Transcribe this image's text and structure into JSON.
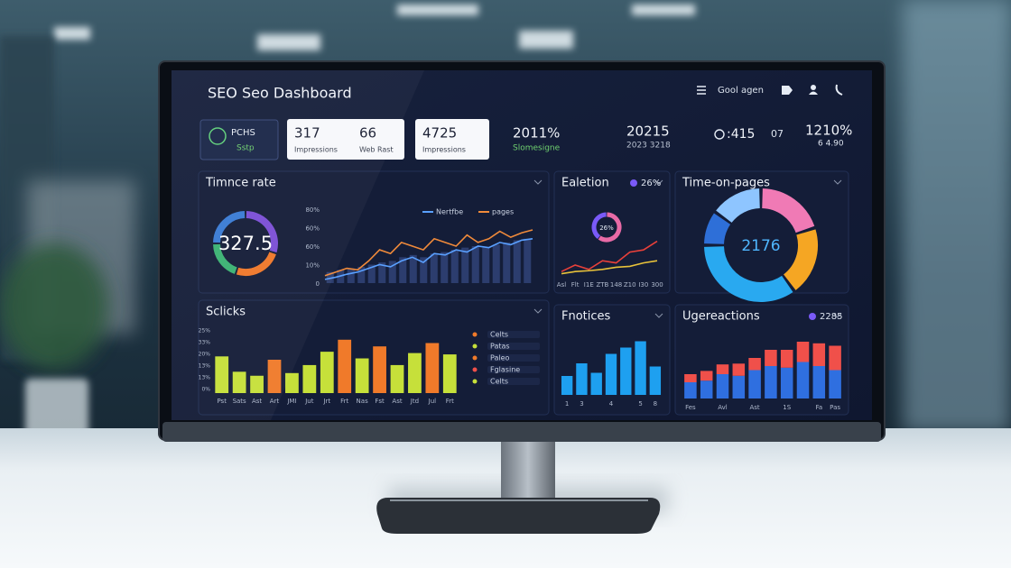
{
  "header": {
    "title": "SEO Seo Dashboard",
    "search": "Gool agen"
  },
  "kpis": [
    {
      "value": "PCHS",
      "label": "Sstp"
    },
    {
      "value": "317",
      "label": "Impressions"
    },
    {
      "value": "66",
      "label": "Web Rast"
    },
    {
      "value": "4725",
      "label": "Impressions"
    },
    {
      "value": "2011%",
      "label": "Slomesigne"
    },
    {
      "value": "20215",
      "label": "2023 3218"
    },
    {
      "value": ":415",
      "label": "07"
    },
    {
      "value": "1210%",
      "label": "6 4.90"
    }
  ],
  "panels": [
    {
      "title": "Timnce rate",
      "gauge": {
        "label": "327.5",
        "segments": [
          {
            "color": "#7b4fd6",
            "value": 30
          },
          {
            "color": "#f0782a",
            "value": 25
          },
          {
            "color": "#3bb273",
            "value": 20
          },
          {
            "color": "#3a7bd5",
            "value": 25
          }
        ]
      },
      "line": {
        "axis_labels": [
          "80%",
          "60%",
          "60%",
          "10%",
          "0"
        ],
        "ylim": [
          0,
          100
        ],
        "bars": {
          "color": "#2c3d6e",
          "values": [
            15,
            18,
            20,
            22,
            25,
            28,
            30,
            35,
            38,
            35,
            40,
            42,
            45,
            48,
            50,
            48,
            52,
            55,
            58,
            60
          ]
        },
        "series": [
          {
            "name": "Nertfbe",
            "color": "#5aa0ff",
            "values": [
              5,
              8,
              12,
              15,
              20,
              25,
              22,
              30,
              35,
              28,
              40,
              38,
              45,
              42,
              50,
              48,
              55,
              52,
              58,
              60
            ]
          },
          {
            "name": "pages",
            "color": "#f08a3a",
            "values": [
              10,
              15,
              20,
              18,
              30,
              45,
              40,
              55,
              50,
              45,
              60,
              55,
              50,
              65,
              55,
              60,
              70,
              62,
              68,
              72
            ]
          }
        ]
      }
    },
    {
      "title": "Ealetion",
      "badge": "26%",
      "donut": {
        "label": "26%",
        "segments": [
          {
            "color": "#e86aa6",
            "value": 60
          },
          {
            "color": "#7a5af8",
            "value": 40
          }
        ]
      },
      "line": {
        "categories": [
          "Asl",
          "Flt",
          "I1E",
          "ZTB",
          "148",
          "Z10",
          "I30",
          "300"
        ],
        "ylim": [
          0,
          100
        ],
        "series": [
          {
            "color": "#e8403a",
            "values": [
              10,
              25,
              15,
              35,
              30,
              55,
              60,
              80
            ]
          },
          {
            "color": "#e8c23a",
            "values": [
              5,
              10,
              12,
              15,
              20,
              22,
              30,
              35
            ]
          }
        ]
      }
    },
    {
      "title": "Time-on-pages",
      "donut": {
        "label": "2176",
        "segments": [
          {
            "color": "#f07ab5",
            "value": 20
          },
          {
            "color": "#f5a623",
            "value": 20
          },
          {
            "color": "#29a9f0",
            "value": 35
          },
          {
            "color": "#2e6fd8",
            "value": 10
          },
          {
            "color": "#8ec5ff",
            "value": 15
          }
        ]
      }
    },
    {
      "title": "Sclicks",
      "bar": {
        "axis_labels": [
          "25%",
          "33%",
          "20%",
          "13%",
          "13%",
          "0%"
        ],
        "ylim": [
          0,
          100
        ],
        "categories": [
          "Pst",
          "Sats",
          "Ast",
          "Art",
          "JMI",
          "Jut",
          "Jrt",
          "Frt",
          "Nas",
          "Fst",
          "Ast",
          "Jtd",
          "Jul",
          "Frt"
        ],
        "colors": [
          "#c6e03a",
          "#c6e03a",
          "#c6e03a",
          "#f07a2a",
          "#c6e03a",
          "#c6e03a",
          "#c6e03a",
          "#f07a2a",
          "#c6e03a",
          "#f07a2a",
          "#c6e03a",
          "#c6e03a",
          "#f07a2a",
          "#c6e03a"
        ],
        "values": [
          55,
          32,
          26,
          50,
          30,
          42,
          62,
          80,
          52,
          70,
          42,
          60,
          75,
          58
        ]
      },
      "legend": [
        {
          "name": "Celts",
          "color": "#f07a2a"
        },
        {
          "name": "Patas",
          "color": "#c6e03a"
        },
        {
          "name": "Paleo",
          "color": "#f07a2a"
        },
        {
          "name": "Fglasine",
          "color": "#f0504a"
        },
        {
          "name": "Celts",
          "color": "#c6e03a"
        }
      ]
    },
    {
      "title": "Fnotices",
      "bar": {
        "categories": [
          "1",
          "3",
          null,
          "4",
          null,
          "5",
          "8"
        ],
        "ylim": [
          0,
          100
        ],
        "color": "#1ea0f0",
        "values": [
          30,
          50,
          35,
          65,
          75,
          85,
          45
        ]
      }
    },
    {
      "title": "Ugereactions",
      "badge": "2285",
      "stack": {
        "categories": [
          "Fes",
          null,
          "Avl",
          null,
          "Ast",
          null,
          "1S",
          null,
          "Fa",
          "Pas"
        ],
        "ylim": [
          0,
          80
        ],
        "series": [
          {
            "color": "#2f6fe0",
            "values": [
              20,
              22,
              30,
              28,
              35,
              40,
              38,
              45,
              40,
              35
            ]
          },
          {
            "color": "#f0504a",
            "values": [
              10,
              12,
              12,
              15,
              15,
              20,
              22,
              25,
              28,
              30
            ]
          }
        ]
      }
    }
  ]
}
